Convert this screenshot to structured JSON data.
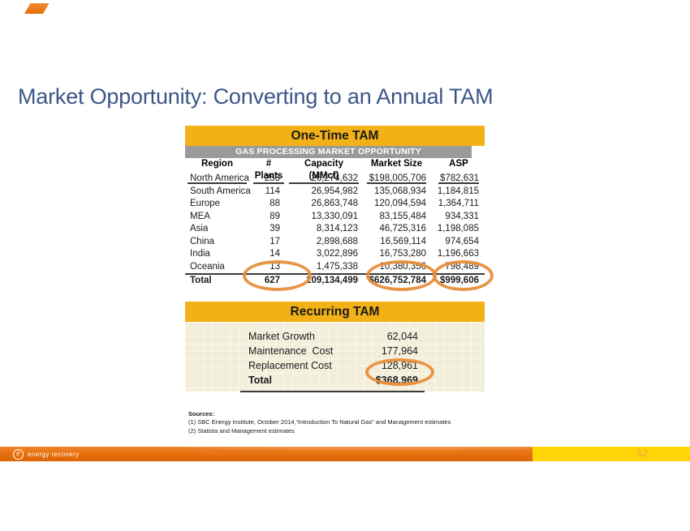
{
  "slide": {
    "title": "Market Opportunity: Converting to an Annual TAM"
  },
  "one_time_tam": {
    "title": "One-Time TAM",
    "subtitle": "GAS PROCESSING MARKET OPPORTUNITY",
    "columns": [
      "Region",
      "# Plants",
      "Capacity (MMcf)",
      "Market Size",
      "ASP"
    ],
    "rows": [
      [
        "North America",
        "253",
        "26,274,632",
        "$198,005,706",
        "$782,631"
      ],
      [
        "South America",
        "114",
        "26,954,982",
        "135,068,934",
        "1,184,815"
      ],
      [
        "Europe",
        "88",
        "26,863,748",
        "120,094,594",
        "1,364,711"
      ],
      [
        "MEA",
        "89",
        "13,330,091",
        "83,155,484",
        "934,331"
      ],
      [
        "Asia",
        "39",
        "8,314,123",
        "46,725,316",
        "1,198,085"
      ],
      [
        "China",
        "17",
        "2,898,688",
        "16,569,114",
        "974,654"
      ],
      [
        "India",
        "14",
        "3,022,896",
        "16,753,280",
        "1,196,663"
      ],
      [
        "Oceania",
        "13",
        "1,475,338",
        "10,380,356",
        "798,489"
      ]
    ],
    "total": [
      "Total",
      "627",
      "109,134,499",
      "$626,752,784",
      "$999,606"
    ]
  },
  "recurring_tam": {
    "title": "Recurring TAM",
    "rows": [
      {
        "label": "Market Growth",
        "value": "62,044"
      },
      {
        "label": "Maintenance  Cost",
        "value": "177,964"
      },
      {
        "label": "Replacement Cost",
        "value": "128,961"
      }
    ],
    "total": {
      "label": "Total",
      "value": "$368,969"
    }
  },
  "sources": {
    "heading": "Sources:",
    "items": [
      "(1)   SBC Energy Institute,  October 2014,“Introduction To Natural Gas” and Management estimates",
      "(2)   Statista and Management estimates"
    ]
  },
  "footer": {
    "logo_text": "energy recovery",
    "logo_glyph": "e",
    "page_number": "52"
  },
  "colors": {
    "title_blue": "#3C5688",
    "gold_band": "#F2B116",
    "gray_band": "#9A9A9A",
    "highlight_orange": "#E78E3B",
    "footer_orange": "#E56F0C",
    "footer_yellow": "#FFD505",
    "recurring_body_bg": "#F2EED9"
  }
}
